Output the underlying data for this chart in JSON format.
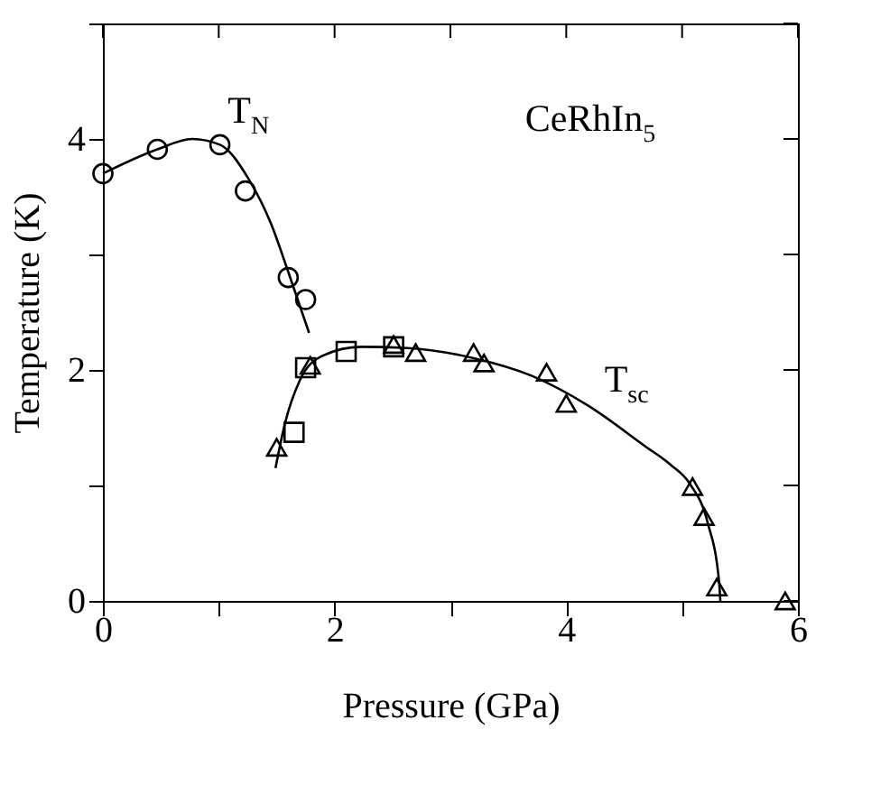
{
  "chart_data": {
    "type": "scatter",
    "xlabel": "Pressure (GPa)",
    "ylabel": "Temperature (K)",
    "xlim": [
      0,
      6
    ],
    "ylim": [
      0,
      5
    ],
    "xticks": [
      0,
      {
        "value": 1,
        "label": null
      },
      2,
      {
        "value": 3,
        "label": null
      },
      4,
      {
        "value": 5,
        "label": null
      },
      6
    ],
    "yticks": [
      0,
      {
        "value": 1,
        "label": null
      },
      2,
      {
        "value": 3,
        "label": null
      },
      4,
      {
        "value": 5,
        "label": null
      }
    ],
    "grid": false,
    "series": [
      {
        "marker": "circle",
        "color": "#000000",
        "x": [
          0,
          0.47,
          1.01,
          1.23,
          1.6,
          1.75
        ],
        "values": [
          3.7,
          3.91,
          3.95,
          3.55,
          2.8,
          2.61
        ]
      },
      {
        "marker": "triangle",
        "color": "#000000",
        "x": [
          1.5,
          1.79,
          2.51,
          2.7,
          3.2,
          3.29,
          3.83,
          4.0,
          5.09,
          5.19,
          5.3,
          5.89
        ],
        "values": [
          1.33,
          2.04,
          2.22,
          2.15,
          2.15,
          2.06,
          1.98,
          1.71,
          0.99,
          0.73,
          0.12,
          0.0
        ]
      },
      {
        "marker": "square",
        "color": "#000000",
        "x": [
          1.65,
          1.75,
          2.1,
          2.51
        ],
        "values": [
          1.46,
          2.02,
          2.16,
          2.2
        ]
      },
      {
        "type": "line",
        "line_style": "solid",
        "color": "#000000",
        "x": [
          0,
          0.47,
          0.77,
          1.01,
          1.26,
          1.45,
          1.6,
          1.78
        ],
        "values": [
          3.7,
          3.91,
          4.0,
          3.95,
          3.65,
          3.27,
          2.85,
          2.32
        ]
      },
      {
        "type": "line",
        "line_style": "solid",
        "color": "#000000",
        "x": [
          1.49,
          1.57,
          1.7,
          1.89,
          2.23,
          2.63,
          3.21,
          3.7,
          4.19,
          4.68,
          4.9,
          5.07,
          5.22,
          5.32,
          5.33
        ],
        "values": [
          1.15,
          1.53,
          1.91,
          2.12,
          2.2,
          2.19,
          2.1,
          1.95,
          1.69,
          1.34,
          1.18,
          1.01,
          0.68,
          0.16,
          0.0
        ]
      }
    ],
    "annotations": [
      "T$_{N}$",
      "CeRhIn$_{5}$",
      "T$_{sc}$"
    ]
  }
}
